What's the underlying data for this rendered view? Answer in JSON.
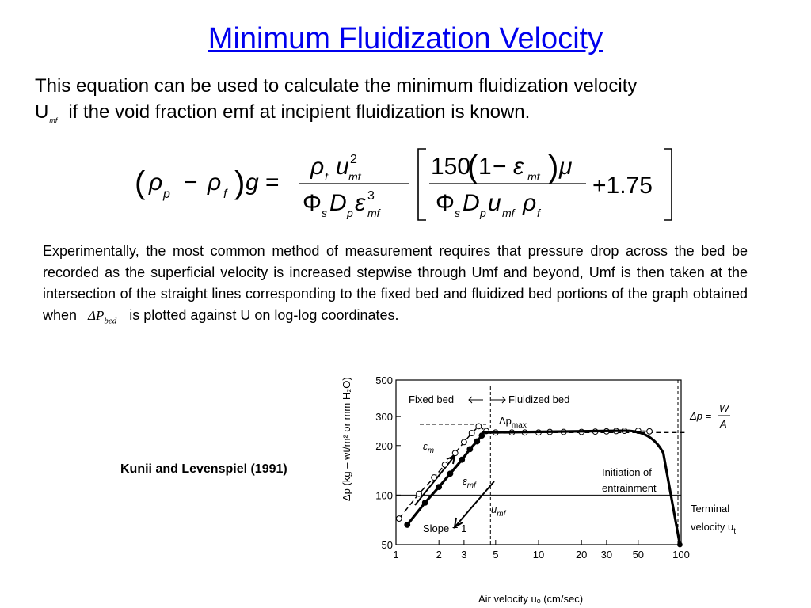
{
  "slide": {
    "title": "Minimum Fluidization Velocity",
    "intro_line1": "This equation can be used to calculate the minimum fluidization velocity",
    "intro_u": "U",
    "intro_u_sub": "mf",
    "intro_line2": "if the void fraction emf at incipient fluidization is known.",
    "paragraph_before": "Experimentally, the most common method  of measurement requires that pressure drop across the bed be recorded as the superficial velocity is increased stepwise through Umf and beyond, Umf is then taken at the intersection of the straight lines corresponding to the fixed bed and fluidized bed portions of the graph obtained when",
    "paragraph_symbol": "ΔP",
    "paragraph_symbol_sub": "bed",
    "paragraph_after": "is plotted against U on log-log coordinates.",
    "citation": "Kunii and Levenspiel (1991)"
  },
  "equation": {
    "lhs_open": "(",
    "rho": "ρ",
    "p": "p",
    "f": "f",
    "minus": "−",
    "lhs_close": ")",
    "g": "g",
    "equals": "=",
    "u": "u",
    "mf": "mf",
    "two": "2",
    "three": "3",
    "phi": "Φ",
    "s": "s",
    "D": "D",
    "eps": "ε",
    "c150": "150",
    "one": "1",
    "mu": "μ",
    "plus": "+1.75"
  },
  "figure": {
    "y_axis_label": "Δp (kg – wt/m² or mm H₂O)",
    "x_axis_label": "Air velocity uₒ (cm/sec)",
    "y_ticks": [
      "500",
      "300",
      "200",
      "100",
      "50"
    ],
    "x_ticks": [
      "1",
      "2",
      "3",
      "5",
      "10",
      "20",
      "30",
      "50",
      "100"
    ],
    "fixed_bed_label": "Fixed bed",
    "fluidized_bed_label": "Fluidized bed",
    "dp_max_label": "Δp",
    "dp_max_sub": "max",
    "dp_eq_label": "Δp =",
    "dp_eq_num": "W",
    "dp_eq_den": "A",
    "eps_m_label": "ε",
    "eps_m_sub": "m",
    "eps_mf_label": "ε",
    "eps_mf_sub": "mf",
    "umf_label": "u",
    "umf_sub": "mf",
    "slope_label": "Slope = 1",
    "initiation_line1": "Initiation of",
    "initiation_line2": "entrainment",
    "terminal_line1": "Terminal",
    "terminal_line2": "velocity u",
    "terminal_sub": "t"
  },
  "chart_data": {
    "type": "scatter",
    "title": "",
    "xlabel": "Air velocity uₒ (cm/sec)",
    "ylabel": "Δp (kg – wt/m² or mm H₂O)",
    "xscale": "log",
    "yscale": "log",
    "xlim": [
      1,
      100
    ],
    "ylim": [
      50,
      500
    ],
    "grid": false,
    "series": [
      {
        "name": "",
        "style": "filled-circles-thick-line",
        "points": [
          [
            1.2,
            66
          ],
          [
            1.6,
            90
          ],
          [
            2.0,
            112
          ],
          [
            2.4,
            135
          ],
          [
            2.9,
            164
          ],
          [
            3.3,
            190
          ],
          [
            3.7,
            212
          ],
          [
            4.0,
            230
          ]
        ]
      },
      {
        "name": "",
        "style": "open-circles-dashed-line",
        "points": [
          [
            1.05,
            72
          ],
          [
            1.45,
            102
          ],
          [
            1.85,
            128
          ],
          [
            2.2,
            153
          ],
          [
            2.6,
            180
          ],
          [
            3.0,
            210
          ],
          [
            3.4,
            238
          ],
          [
            3.8,
            262
          ],
          [
            4.3,
            245
          ],
          [
            5.0,
            240
          ],
          [
            6.5,
            240
          ],
          [
            8.0,
            240
          ],
          [
            10,
            240
          ],
          [
            12,
            242
          ],
          [
            15,
            242
          ],
          [
            20,
            242
          ],
          [
            25,
            243
          ],
          [
            30,
            244
          ],
          [
            35,
            245
          ],
          [
            40,
            246
          ],
          [
            50,
            246
          ],
          [
            60,
            244
          ]
        ]
      }
    ],
    "reference_lines": {
      "dp_equals_W_over_A": 240,
      "u_mf": 4.6,
      "y_100_line": 100
    }
  }
}
